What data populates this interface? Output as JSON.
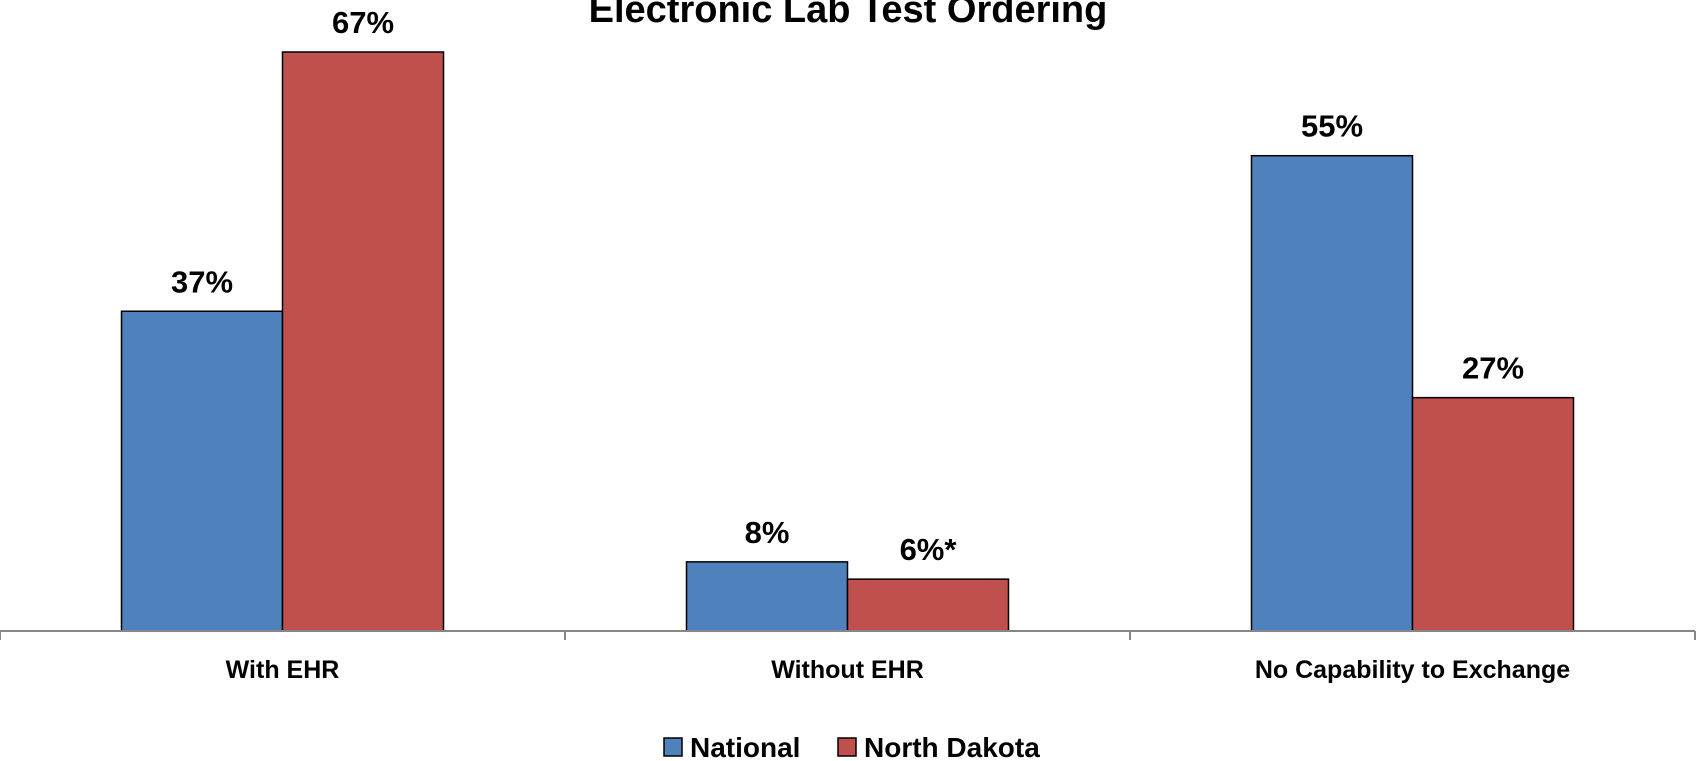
{
  "chart_data": {
    "type": "bar",
    "title": "Electronic Lab Test Ordering",
    "xlabel": "",
    "ylabel": "",
    "ylim": [
      0,
      67
    ],
    "grid": false,
    "legend_position": "bottom",
    "categories": [
      "With EHR",
      "Without EHR",
      "No Capability to Exchange"
    ],
    "series": [
      {
        "name": "National",
        "color": "#4F81BD",
        "values": [
          37,
          8,
          55
        ],
        "labels": [
          "37%",
          "8%",
          "55%"
        ]
      },
      {
        "name": "North Dakota",
        "color": "#C0504D",
        "values": [
          67,
          6,
          27
        ],
        "labels": [
          "67%",
          "6%*",
          "27%"
        ]
      }
    ]
  }
}
